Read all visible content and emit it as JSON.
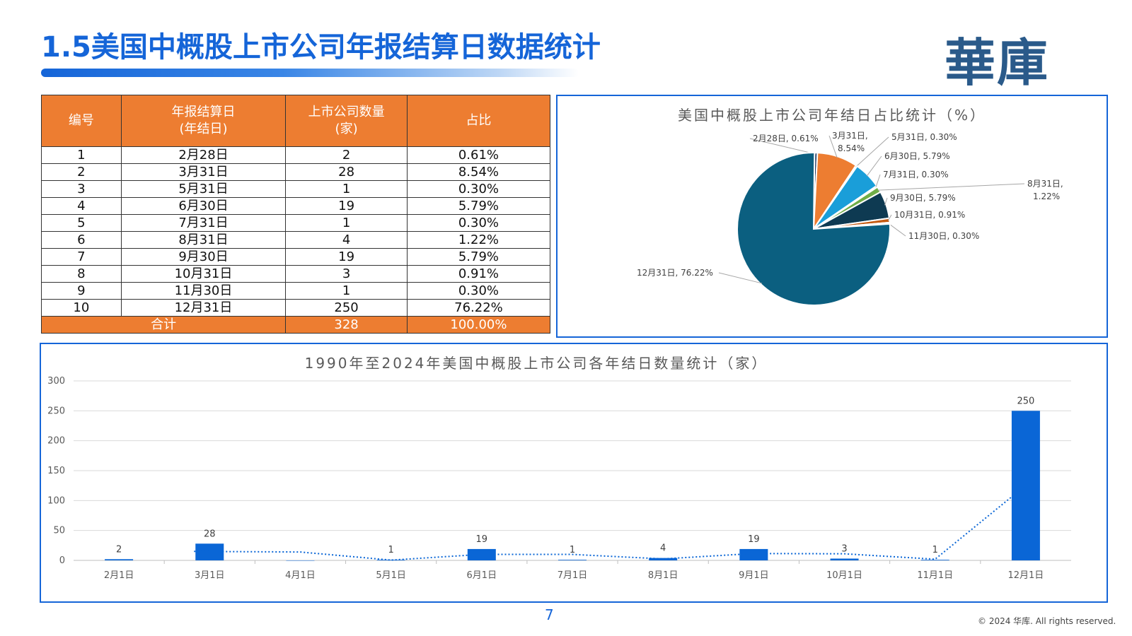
{
  "header": {
    "title": "1.5美国中概股上市公司年报结算日数据统计",
    "logo": "華庫"
  },
  "table": {
    "headers": [
      "编号",
      "年报结算日\n(年结日)",
      "上市公司数量\n(家)",
      "占比"
    ],
    "rows": [
      [
        "1",
        "2月28日",
        "2",
        "0.61%"
      ],
      [
        "2",
        "3月31日",
        "28",
        "8.54%"
      ],
      [
        "3",
        "5月31日",
        "1",
        "0.30%"
      ],
      [
        "4",
        "6月30日",
        "19",
        "5.79%"
      ],
      [
        "5",
        "7月31日",
        "1",
        "0.30%"
      ],
      [
        "6",
        "8月31日",
        "4",
        "1.22%"
      ],
      [
        "7",
        "9月30日",
        "19",
        "5.79%"
      ],
      [
        "8",
        "10月31日",
        "3",
        "0.91%"
      ],
      [
        "9",
        "11月30日",
        "1",
        "0.30%"
      ],
      [
        "10",
        "12月31日",
        "250",
        "76.22%"
      ]
    ],
    "total": [
      "合计",
      "328",
      "100.00%"
    ]
  },
  "chart_data": [
    {
      "type": "pie",
      "title": "美国中概股上市公司年结日占比统计（%）",
      "labels": [
        "2月28日",
        "3月31日",
        "5月31日",
        "6月30日",
        "7月31日",
        "8月31日",
        "9月30日",
        "10月31日",
        "11月30日",
        "12月31日"
      ],
      "values": [
        0.61,
        8.54,
        0.3,
        5.79,
        0.3,
        1.22,
        5.79,
        0.91,
        0.3,
        76.22
      ],
      "data_labels": [
        "2月28日, 0.61%",
        "3月31日, 8.54%",
        "5月31日, 0.30%",
        "6月30日, 5.79%",
        "7月31日, 0.30%",
        "8月31日, 1.22%",
        "9月30日, 5.79%",
        "10月31日, 0.91%",
        "11月30日, 0.30%",
        "12月31日, 76.22%"
      ],
      "colors": [
        "#1f3864",
        "#ed7d31",
        "#a5a5a5",
        "#1a9ed9",
        "#264478",
        "#70ad47",
        "#0e3a52",
        "#c55a11",
        "#5b9bd5",
        "#0b5f80"
      ]
    },
    {
      "type": "bar",
      "title": "1990年至2024年美国中概股上市公司各年结日数量统计（家）",
      "categories": [
        "2月1日",
        "3月1日",
        "4月1日",
        "5月1日",
        "6月1日",
        "7月1日",
        "8月1日",
        "9月1日",
        "10月1日",
        "11月1日",
        "12月1日"
      ],
      "values": [
        2,
        28,
        0,
        1,
        19,
        1,
        4,
        19,
        3,
        1,
        250
      ],
      "data_labels": [
        "2",
        "28",
        "",
        "1",
        "19",
        "1",
        "4",
        "19",
        "3",
        "1",
        "250"
      ],
      "ylim": [
        0,
        300
      ],
      "yticks": [
        "0",
        "50",
        "100",
        "150",
        "200",
        "250",
        "300"
      ],
      "grid": true,
      "trendline": "dotted moving average",
      "bar_color": "#0a66d6"
    }
  ],
  "footer": {
    "page": "7",
    "copyright": "© 2024 华库. All rights reserved."
  }
}
